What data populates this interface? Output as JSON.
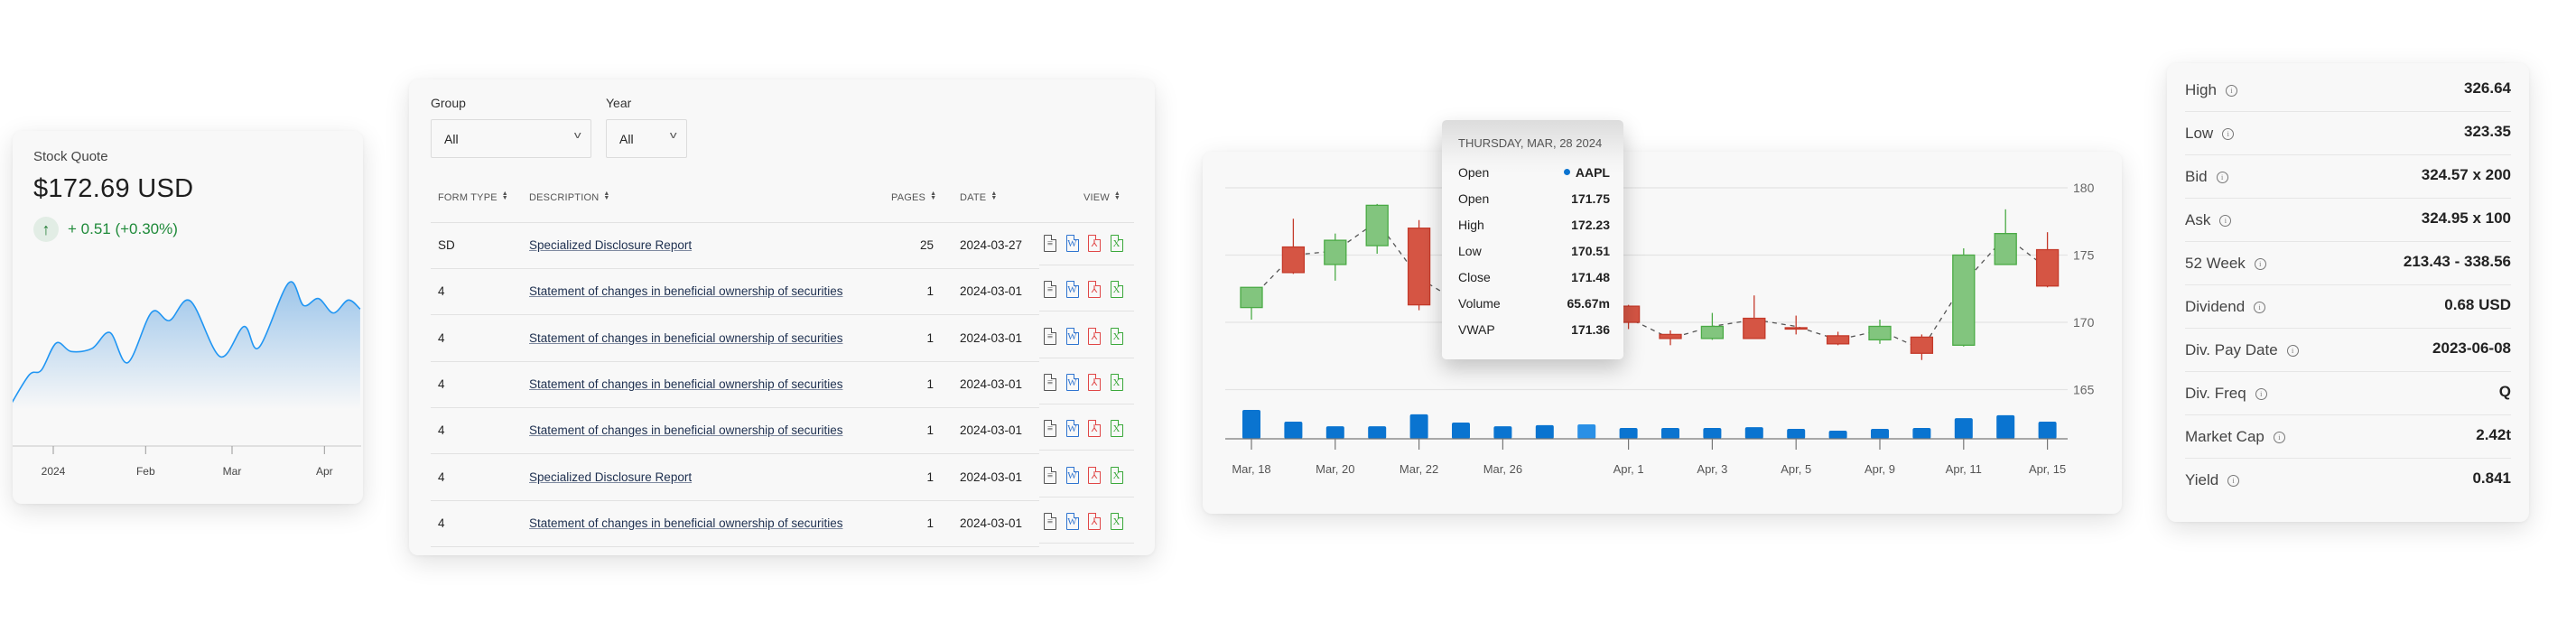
{
  "quote": {
    "title": "Stock Quote",
    "price": "$172.69 USD",
    "change": "+ 0.51 (+0.30%)",
    "direction_icon": "arrow-up-icon",
    "positive_color": "#1f8a3a"
  },
  "filings": {
    "group_label": "Group",
    "group_value": "All",
    "year_label": "Year",
    "year_value": "All",
    "columns": [
      "FORM TYPE",
      "DESCRIPTION",
      "PAGES",
      "DATE",
      "VIEW"
    ],
    "view_icons": [
      {
        "name": "text-document-icon",
        "glyph": "≡",
        "color": "#555555"
      },
      {
        "name": "word-document-icon",
        "glyph": "W",
        "color": "#2f74d0"
      },
      {
        "name": "pdf-document-icon",
        "glyph": "⅄",
        "color": "#e04646"
      },
      {
        "name": "excel-document-icon",
        "glyph": "X",
        "color": "#3aa83a"
      }
    ],
    "rows": [
      {
        "form_type": "SD",
        "description": "Specialized Disclosure Report",
        "pages": "25",
        "date": "2024-03-27"
      },
      {
        "form_type": "4",
        "description": "Statement of changes in beneficial ownership of securities",
        "pages": "1",
        "date": "2024-03-01"
      },
      {
        "form_type": "4",
        "description": "Statement of changes in beneficial ownership of securities",
        "pages": "1",
        "date": "2024-03-01"
      },
      {
        "form_type": "4",
        "description": "Statement of changes in beneficial ownership of securities",
        "pages": "1",
        "date": "2024-03-01"
      },
      {
        "form_type": "4",
        "description": "Statement of changes in beneficial ownership of securities",
        "pages": "1",
        "date": "2024-03-01"
      },
      {
        "form_type": "4",
        "description": "Specialized Disclosure Report",
        "pages": "1",
        "date": "2024-03-01"
      },
      {
        "form_type": "4",
        "description": "Statement of changes in beneficial ownership of securities",
        "pages": "1",
        "date": "2024-03-01"
      }
    ]
  },
  "tooltip": {
    "header": "THURSDAY, MAR, 28 2024",
    "series_label": "Open",
    "series_name": "AAPL",
    "series_color": "#0a74d0",
    "rows": [
      {
        "label": "Open",
        "value": "171.75"
      },
      {
        "label": "High",
        "value": "172.23"
      },
      {
        "label": "Low",
        "value": "170.51"
      },
      {
        "label": "Close",
        "value": "171.48"
      },
      {
        "label": "Volume",
        "value": "65.67m"
      },
      {
        "label": "VWAP",
        "value": "171.36"
      }
    ]
  },
  "stats": {
    "rows": [
      {
        "label": "High",
        "value": "326.64"
      },
      {
        "label": "Low",
        "value": "323.35"
      },
      {
        "label": "Bid",
        "value": "324.57 x 200"
      },
      {
        "label": "Ask",
        "value": "324.95 x 100"
      },
      {
        "label": "52 Week",
        "value": "213.43 - 338.56"
      },
      {
        "label": "Dividend",
        "value": "0.68 USD"
      },
      {
        "label": "Div. Pay Date",
        "value": "2023-06-08"
      },
      {
        "label": "Div. Freq",
        "value": "Q"
      },
      {
        "label": "Market Cap",
        "value": "2.42t"
      },
      {
        "label": "Yield",
        "value": "0.841"
      }
    ]
  },
  "chart_data": [
    {
      "type": "area",
      "x_ticks": [
        "2024",
        "Feb",
        "Mar",
        "Apr"
      ],
      "x_tick_dates": [
        "2024-01-01",
        "2024-02-01",
        "2024-03-01",
        "2024-04-01"
      ],
      "x": [
        "2023-12-18",
        "2023-12-24",
        "2023-12-28",
        "2024-01-02",
        "2024-01-07",
        "2024-01-14",
        "2024-01-20",
        "2024-01-26",
        "2024-02-03",
        "2024-02-09",
        "2024-02-16",
        "2024-02-26",
        "2024-03-05",
        "2024-03-10",
        "2024-03-20",
        "2024-03-25",
        "2024-03-30",
        "2024-04-04",
        "2024-04-09",
        "2024-04-13"
      ],
      "values": [
        154.3,
        163.8,
        165.3,
        174.3,
        171.5,
        172.5,
        177.8,
        167.8,
        184.5,
        181.8,
        188.3,
        169.8,
        179.8,
        172.8,
        194.3,
        186.8,
        189.1,
        184.3,
        188.6,
        185.6
      ],
      "ylim": [
        140,
        200
      ],
      "grid": false,
      "line_color": "#2196f3",
      "fill_color": "#9cc5ea"
    },
    {
      "type": "candlestick",
      "dates": [
        "Mar, 18",
        "Mar, 19",
        "Mar, 20",
        "Mar, 21",
        "Mar, 22",
        "Mar, 25",
        "Mar, 26",
        "Mar, 27",
        "Mar, 28",
        "Apr, 1",
        "Apr, 2",
        "Apr, 3",
        "Apr, 4",
        "Apr, 5",
        "Apr, 8",
        "Apr, 9",
        "Apr, 10",
        "Apr, 11",
        "Apr, 12",
        "Apr, 15"
      ],
      "x_tick_labels": [
        "Mar, 18",
        "Mar, 20",
        "Mar, 22",
        "Mar, 26",
        "Apr, 1",
        "Apr, 3",
        "Apr, 5",
        "Apr, 9",
        "Apr, 11",
        "Apr, 15"
      ],
      "open": [
        171.1,
        175.6,
        174.3,
        175.7,
        177.0,
        170.9,
        171.2,
        170.0,
        171.75,
        171.2,
        169.1,
        168.8,
        170.3,
        169.6,
        169.0,
        168.7,
        168.9,
        168.3,
        174.3,
        175.4
      ],
      "high": [
        172.6,
        177.7,
        176.6,
        178.8,
        177.6,
        172.0,
        171.5,
        173.4,
        172.23,
        171.3,
        169.4,
        170.7,
        172.0,
        170.5,
        169.3,
        170.2,
        169.1,
        175.5,
        178.4,
        176.7
      ],
      "low": [
        170.2,
        173.6,
        173.1,
        175.1,
        170.9,
        170.6,
        169.6,
        169.9,
        170.51,
        169.5,
        168.3,
        168.7,
        168.8,
        169.1,
        168.3,
        168.4,
        167.2,
        168.2,
        174.3,
        172.6
      ],
      "close": [
        172.6,
        173.7,
        176.1,
        178.7,
        171.3,
        171.7,
        169.9,
        173.2,
        171.48,
        170.0,
        168.8,
        169.7,
        168.8,
        169.5,
        168.4,
        169.7,
        167.7,
        175.0,
        176.6,
        172.7
      ],
      "vwap": [
        171.8,
        175.0,
        175.3,
        177.5,
        173.3,
        171.4,
        170.3,
        172.2,
        171.36,
        170.3,
        168.8,
        169.7,
        170.2,
        169.7,
        168.7,
        169.4,
        168.0,
        172.9,
        176.4,
        174.0
      ],
      "volume_millions": [
        131,
        78,
        57,
        57,
        111,
        74,
        57,
        62,
        65.67,
        49,
        49,
        49,
        53,
        45,
        37,
        45,
        49,
        94,
        107,
        78
      ],
      "y_ticks": [
        165,
        170,
        175,
        180
      ],
      "ylim": [
        163.5,
        181
      ],
      "grid": true,
      "hovered_index": 8,
      "up_color": "#82c57e",
      "down_color": "#d55544",
      "volume_color": "#0a74d0",
      "volume_hover_color": "#2a90e6"
    }
  ]
}
